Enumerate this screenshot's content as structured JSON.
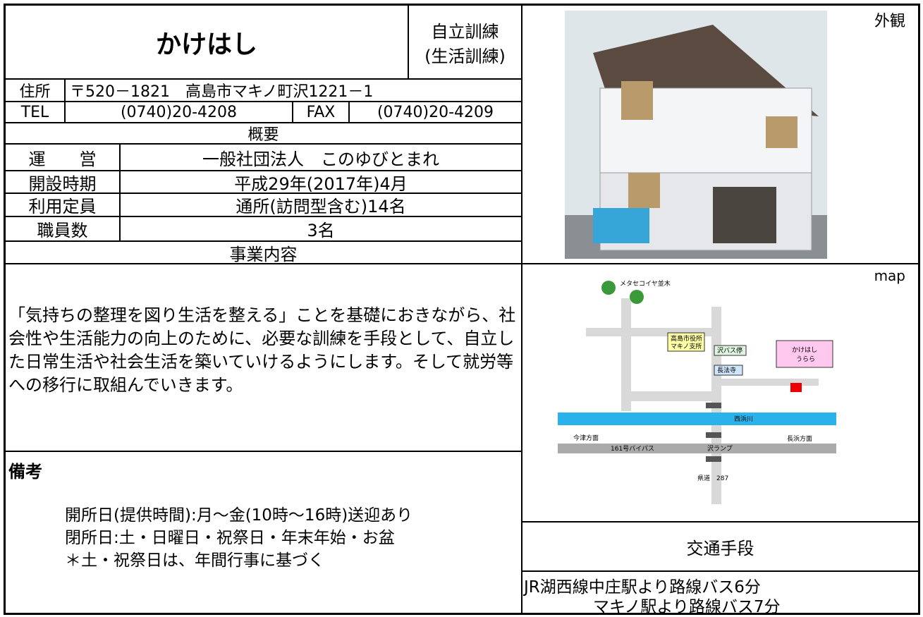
{
  "header": {
    "title": "かけはし",
    "category": [
      "自立訓練",
      "(生活訓練)"
    ]
  },
  "address": {
    "label": "住所",
    "value": "〒520－1821　高島市マキノ町沢1221－1"
  },
  "contact": {
    "tel_label": "TEL",
    "tel": "(0740)20-4208",
    "fax_label": "FAX",
    "fax": "(0740)20-4209"
  },
  "overview": {
    "heading": "概要",
    "rows": [
      [
        "運　　営",
        "一般社団法人　このゆびとまれ"
      ],
      [
        "開設時期",
        "平成29年(2017年)4月"
      ],
      [
        "利用定員",
        "通所(訪問型含む)14名"
      ],
      [
        "職員数",
        "3名"
      ]
    ]
  },
  "business": {
    "heading": "事業内容",
    "text": "「気持ちの整理を図り生活を整える」ことを基礎におきながら、社会性や生活能力の向上のために、必要な訓練を手段として、自立した日常生活や社会生活を築いていけるようにします。そして就労等への移行に取組んでいきます。"
  },
  "notes": {
    "heading": "備考",
    "lines": [
      "開所日(提供時間):月～金(10時～16時)送迎あり",
      "閉所日:土・日曜日・祝祭日・年末年始・お盆",
      "＊土・祝祭日は、年間行事に基づく"
    ]
  },
  "photo": {
    "label": "外観"
  },
  "map": {
    "label": "map",
    "places": [
      "メタセコイヤ並木",
      "高島市役所",
      "マキノ支所",
      "沢バス停",
      "長法寺",
      "かけはし",
      "うらら",
      "西浜川",
      "今津方面",
      "長浜方面",
      "161号バイパス",
      "沢ランプ",
      "県道　287"
    ]
  },
  "transport": {
    "heading": "交通手段",
    "lines": [
      "JR湖西線中庄駅より路線バス6分",
      "マキノ駅より路線バス7分"
    ]
  }
}
